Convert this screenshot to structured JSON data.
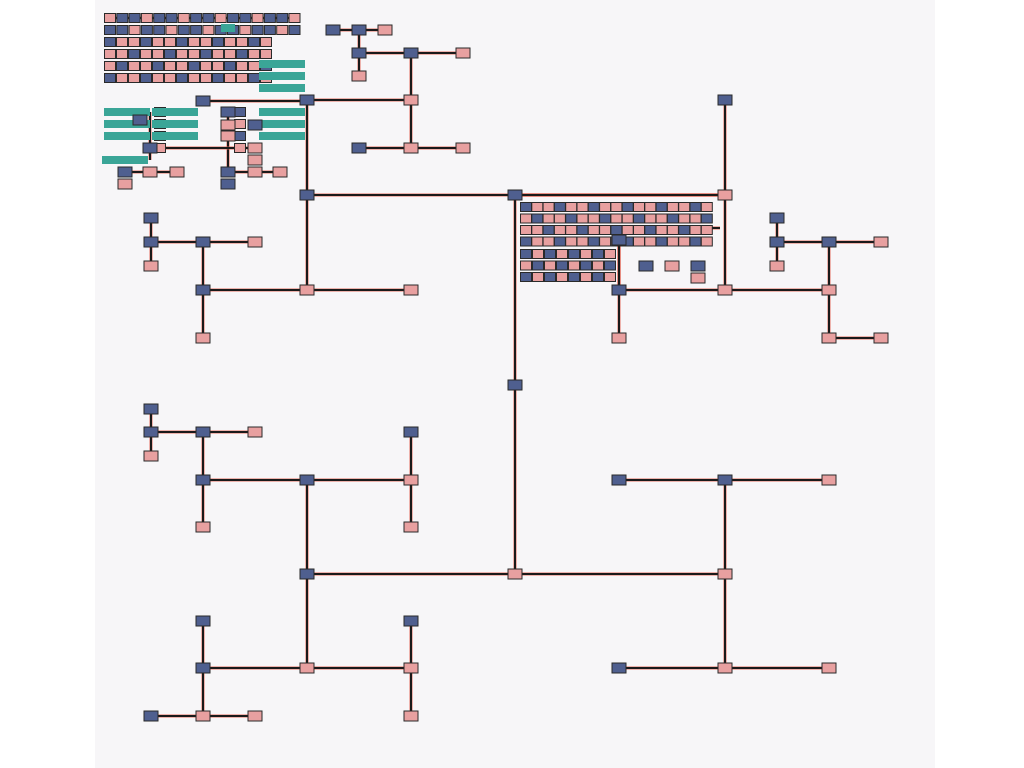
{
  "diagram": {
    "type": "tree-graph",
    "colors": {
      "background": "#ffffff",
      "panel": "#f7f6f8",
      "edge": "#1a1a1a",
      "edge_glow": "#e06050",
      "node_blue": "#4f5f8f",
      "node_pink": "#e8a0a0",
      "node_teal": "#3aa597",
      "node_stroke": "#2a2a2a"
    },
    "legend": null
  }
}
